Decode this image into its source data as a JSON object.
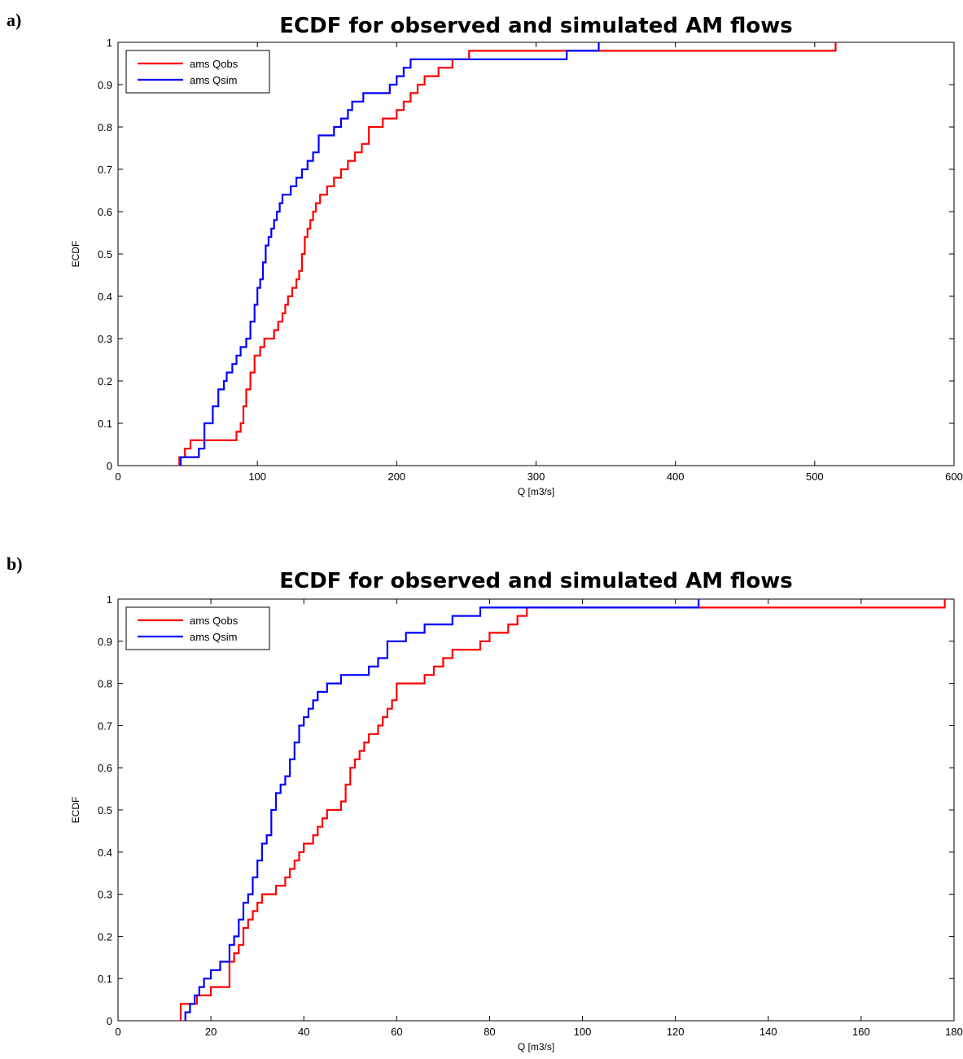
{
  "panels": [
    {
      "label": "a)"
    },
    {
      "label": "b)"
    }
  ],
  "chart_data": [
    {
      "type": "line",
      "title": "ECDF for observed and simulated AM flows",
      "xlabel": "Q [m3/s]",
      "ylabel": "ECDF",
      "xlim": [
        0,
        600
      ],
      "ylim": [
        0,
        1
      ],
      "xticks": [
        0,
        100,
        200,
        300,
        400,
        500,
        600
      ],
      "yticks": [
        0,
        0.1,
        0.2,
        0.3,
        0.4,
        0.5,
        0.6,
        0.7,
        0.8,
        0.9,
        1
      ],
      "xtick_labels": [
        "0",
        "100",
        "200",
        "300",
        "400",
        "500",
        "600"
      ],
      "ytick_labels": [
        "0",
        "0.1",
        "0.2",
        "0.3",
        "0.4",
        "0.5",
        "0.6",
        "0.7",
        "0.8",
        "0.9",
        "1"
      ],
      "grid": false,
      "legend": "top-left",
      "series": [
        {
          "name": "ams Qobs",
          "color": "#ff0000",
          "step": true,
          "x": [
            44,
            48,
            52,
            56,
            60,
            64,
            68,
            72,
            76,
            80,
            85,
            88,
            90,
            92,
            95,
            98,
            100,
            102,
            105,
            108,
            112,
            115,
            118,
            120,
            122,
            125,
            128,
            130,
            132,
            134,
            136,
            138,
            140,
            142,
            145,
            150,
            155,
            160,
            165,
            170,
            175,
            180,
            190,
            200,
            205,
            210,
            215,
            220,
            230,
            240,
            252,
            330,
            348,
            515
          ],
          "y": [
            0.02,
            0.04,
            0.06,
            0.06,
            0.06,
            0.06,
            0.06,
            0.06,
            0.06,
            0.06,
            0.08,
            0.1,
            0.14,
            0.18,
            0.22,
            0.26,
            0.26,
            0.28,
            0.3,
            0.3,
            0.32,
            0.34,
            0.36,
            0.38,
            0.4,
            0.42,
            0.44,
            0.46,
            0.5,
            0.54,
            0.56,
            0.58,
            0.6,
            0.62,
            0.64,
            0.66,
            0.68,
            0.7,
            0.72,
            0.74,
            0.76,
            0.8,
            0.82,
            0.84,
            0.86,
            0.88,
            0.9,
            0.92,
            0.94,
            0.96,
            0.98,
            0.98,
            0.98,
            1.0
          ]
        },
        {
          "name": "ams Qsim",
          "color": "#0000ff",
          "step": true,
          "x": [
            45,
            58,
            62,
            68,
            72,
            76,
            78,
            82,
            85,
            88,
            92,
            95,
            98,
            100,
            102,
            104,
            106,
            108,
            110,
            112,
            114,
            116,
            118,
            120,
            124,
            128,
            132,
            136,
            140,
            144,
            155,
            160,
            165,
            168,
            172,
            176,
            195,
            200,
            205,
            210,
            220,
            322,
            345
          ],
          "y": [
            0.02,
            0.04,
            0.1,
            0.14,
            0.18,
            0.2,
            0.22,
            0.24,
            0.26,
            0.28,
            0.3,
            0.34,
            0.38,
            0.42,
            0.44,
            0.48,
            0.52,
            0.54,
            0.56,
            0.58,
            0.6,
            0.62,
            0.64,
            0.64,
            0.66,
            0.68,
            0.7,
            0.72,
            0.74,
            0.78,
            0.8,
            0.82,
            0.84,
            0.86,
            0.86,
            0.88,
            0.9,
            0.92,
            0.94,
            0.96,
            0.96,
            0.98,
            1.0
          ]
        }
      ]
    },
    {
      "type": "line",
      "title": "ECDF for observed and simulated AM flows",
      "xlabel": "Q [m3/s]",
      "ylabel": "ECDF",
      "xlim": [
        0,
        180
      ],
      "ylim": [
        0,
        1
      ],
      "xticks": [
        0,
        20,
        40,
        60,
        80,
        100,
        120,
        140,
        160,
        180
      ],
      "yticks": [
        0,
        0.1,
        0.2,
        0.3,
        0.4,
        0.5,
        0.6,
        0.7,
        0.8,
        0.9,
        1
      ],
      "xtick_labels": [
        "0",
        "20",
        "40",
        "60",
        "80",
        "100",
        "120",
        "140",
        "160",
        "180"
      ],
      "ytick_labels": [
        "0",
        "0.1",
        "0.2",
        "0.3",
        "0.4",
        "0.5",
        "0.6",
        "0.7",
        "0.8",
        "0.9",
        "1"
      ],
      "grid": false,
      "legend": "top-left",
      "series": [
        {
          "name": "ams Qobs",
          "color": "#ff0000",
          "step": true,
          "x": [
            13.5,
            17,
            20,
            24,
            25,
            26,
            27,
            28,
            29,
            30,
            31,
            32,
            34,
            36,
            37,
            38,
            39,
            40,
            41,
            42,
            43,
            44,
            45,
            47,
            48,
            49,
            50,
            51,
            52,
            53,
            54,
            56,
            57,
            58,
            59,
            60,
            62,
            64,
            66,
            68,
            70,
            72,
            74,
            76,
            78,
            80,
            84,
            86,
            88,
            125,
            178
          ],
          "y": [
            0.04,
            0.06,
            0.08,
            0.14,
            0.16,
            0.18,
            0.22,
            0.24,
            0.26,
            0.28,
            0.3,
            0.3,
            0.32,
            0.34,
            0.36,
            0.38,
            0.4,
            0.42,
            0.42,
            0.44,
            0.46,
            0.48,
            0.5,
            0.5,
            0.52,
            0.56,
            0.6,
            0.62,
            0.64,
            0.66,
            0.68,
            0.7,
            0.72,
            0.74,
            0.76,
            0.8,
            0.8,
            0.8,
            0.82,
            0.84,
            0.86,
            0.88,
            0.88,
            0.88,
            0.9,
            0.92,
            0.94,
            0.96,
            0.98,
            0.98,
            1.0
          ]
        },
        {
          "name": "ams Qsim",
          "color": "#0000ff",
          "step": true,
          "x": [
            14.5,
            15.5,
            16.5,
            17.5,
            18.5,
            20,
            22,
            24,
            25,
            26,
            27,
            28,
            29,
            30,
            31,
            32,
            33,
            34,
            35,
            36,
            37,
            38,
            39,
            40,
            41,
            42,
            43,
            45,
            48,
            50,
            54,
            56,
            58,
            62,
            66,
            72,
            78,
            125
          ],
          "y": [
            0.02,
            0.04,
            0.06,
            0.08,
            0.1,
            0.12,
            0.14,
            0.18,
            0.2,
            0.24,
            0.28,
            0.3,
            0.34,
            0.38,
            0.42,
            0.44,
            0.5,
            0.54,
            0.56,
            0.58,
            0.62,
            0.66,
            0.7,
            0.72,
            0.74,
            0.76,
            0.78,
            0.8,
            0.82,
            0.82,
            0.84,
            0.86,
            0.9,
            0.92,
            0.94,
            0.96,
            0.98,
            1.0
          ]
        }
      ]
    }
  ]
}
